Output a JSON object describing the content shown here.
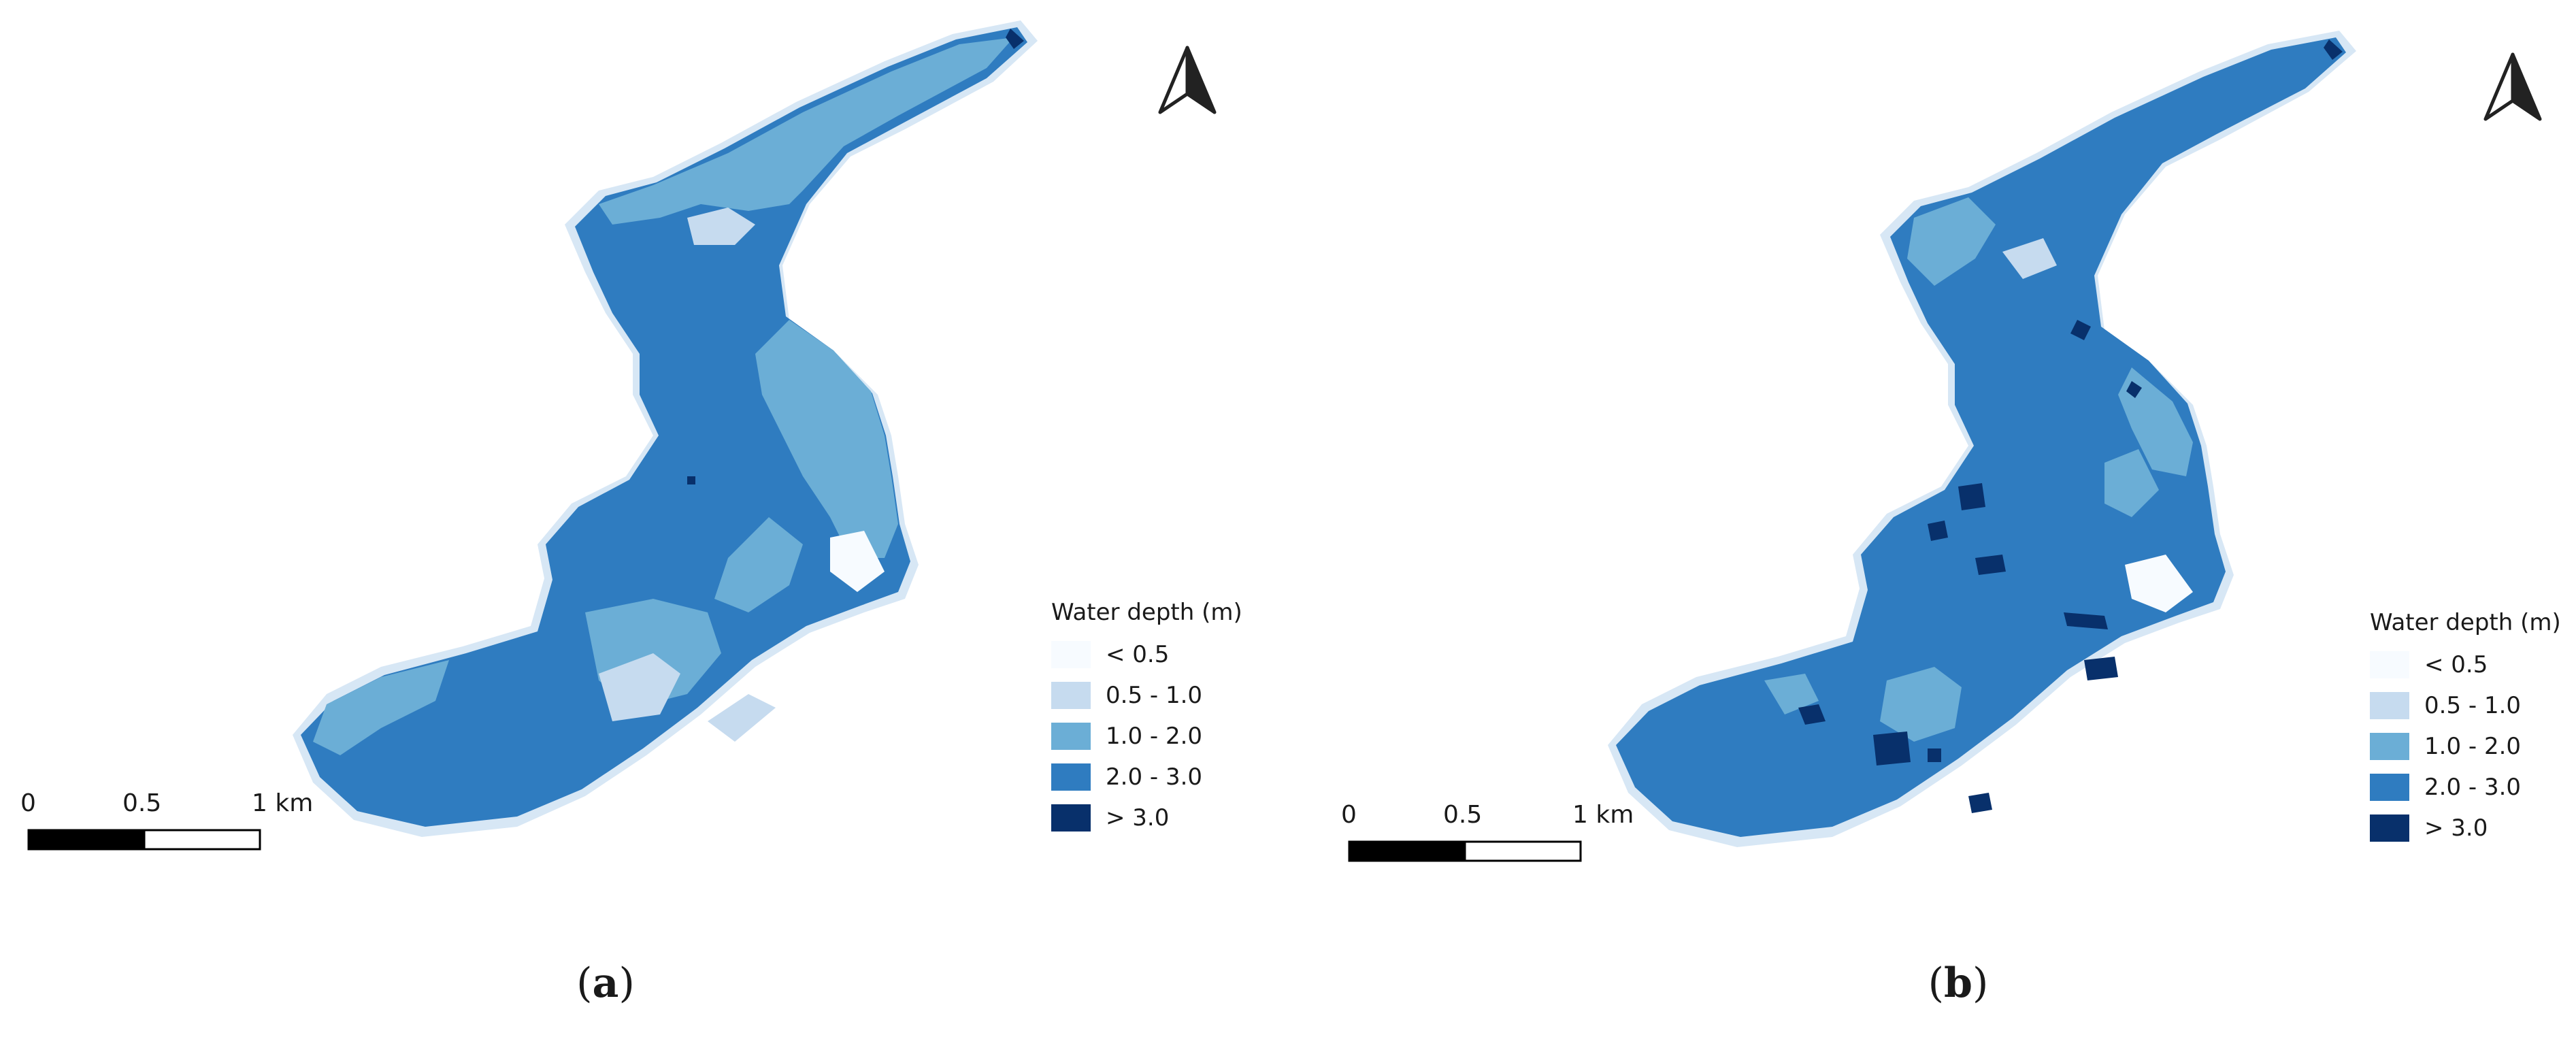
{
  "legend": {
    "title": "Water depth (m)",
    "classes": [
      {
        "label": "< 0.5",
        "color": "#f7fbff"
      },
      {
        "label": "0.5 - 1.0",
        "color": "#c6dbef"
      },
      {
        "label": "1.0 - 2.0",
        "color": "#6baed6"
      },
      {
        "label": "2.0 - 3.0",
        "color": "#2f7cc0"
      },
      {
        "label": "> 3.0",
        "color": "#08306b"
      }
    ]
  },
  "scale_bar": {
    "label_0": "0",
    "label_mid": "0.5",
    "label_end": "1 km"
  },
  "panels": [
    {
      "id": "a",
      "caption": "a"
    },
    {
      "id": "b",
      "caption": "b"
    }
  ]
}
